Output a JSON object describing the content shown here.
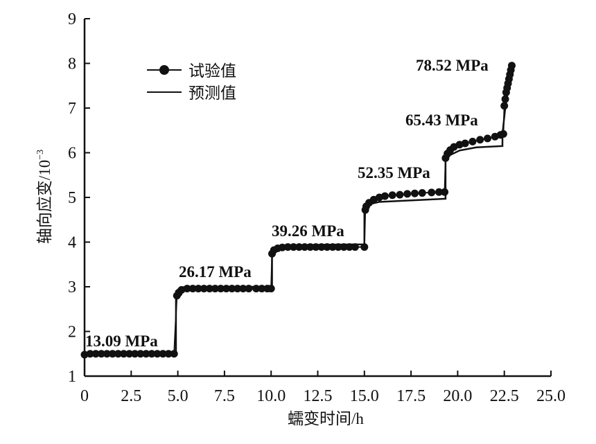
{
  "chart_data": {
    "type": "line",
    "title": "",
    "xlabel": "蠕变时间/h",
    "ylabel": "轴向应变/10",
    "ylabel_exp": "−3",
    "xlim": [
      0,
      25
    ],
    "ylim": [
      1,
      9
    ],
    "xticks": [
      "0",
      "2.5",
      "5.0",
      "7.5",
      "10.0",
      "12.5",
      "15.0",
      "17.5",
      "20.0",
      "22.5",
      "25.0"
    ],
    "yticks": [
      "1",
      "2",
      "3",
      "4",
      "5",
      "6",
      "7",
      "8",
      "9"
    ],
    "grid": false,
    "legend": {
      "placement": "top-left",
      "entries": [
        "试验值",
        "预测值"
      ]
    },
    "annotations": [
      "13.09 MPa",
      "26.17 MPa",
      "39.26 MPa",
      "52.35 MPa",
      "65.43 MPa",
      "78.52 MPa"
    ],
    "series": [
      {
        "name": "试验值",
        "marker": "circle",
        "points": [
          [
            0,
            1.48
          ],
          [
            0.3,
            1.5
          ],
          [
            0.6,
            1.5
          ],
          [
            0.9,
            1.5
          ],
          [
            1.2,
            1.5
          ],
          [
            1.5,
            1.5
          ],
          [
            1.8,
            1.5
          ],
          [
            2.1,
            1.5
          ],
          [
            2.4,
            1.5
          ],
          [
            2.7,
            1.5
          ],
          [
            3.0,
            1.5
          ],
          [
            3.3,
            1.5
          ],
          [
            3.6,
            1.5
          ],
          [
            3.9,
            1.5
          ],
          [
            4.2,
            1.5
          ],
          [
            4.5,
            1.5
          ],
          [
            4.8,
            1.5
          ],
          [
            4.95,
            2.8
          ],
          [
            5.05,
            2.86
          ],
          [
            5.2,
            2.93
          ],
          [
            5.5,
            2.96
          ],
          [
            5.8,
            2.96
          ],
          [
            6.1,
            2.96
          ],
          [
            6.4,
            2.96
          ],
          [
            6.7,
            2.96
          ],
          [
            7.0,
            2.96
          ],
          [
            7.3,
            2.96
          ],
          [
            7.6,
            2.96
          ],
          [
            7.9,
            2.96
          ],
          [
            8.2,
            2.96
          ],
          [
            8.5,
            2.96
          ],
          [
            8.8,
            2.96
          ],
          [
            9.2,
            2.96
          ],
          [
            9.5,
            2.96
          ],
          [
            9.8,
            2.96
          ],
          [
            10.0,
            2.96
          ],
          [
            10.05,
            3.74
          ],
          [
            10.15,
            3.82
          ],
          [
            10.35,
            3.86
          ],
          [
            10.6,
            3.88
          ],
          [
            10.9,
            3.89
          ],
          [
            11.2,
            3.89
          ],
          [
            11.5,
            3.89
          ],
          [
            11.8,
            3.89
          ],
          [
            12.1,
            3.89
          ],
          [
            12.4,
            3.89
          ],
          [
            12.7,
            3.89
          ],
          [
            13.0,
            3.89
          ],
          [
            13.3,
            3.89
          ],
          [
            13.6,
            3.89
          ],
          [
            13.9,
            3.89
          ],
          [
            14.2,
            3.89
          ],
          [
            14.5,
            3.89
          ],
          [
            15.0,
            3.89
          ],
          [
            15.05,
            4.72
          ],
          [
            15.1,
            4.8
          ],
          [
            15.25,
            4.88
          ],
          [
            15.5,
            4.95
          ],
          [
            15.8,
            5.0
          ],
          [
            16.1,
            5.03
          ],
          [
            16.5,
            5.05
          ],
          [
            16.9,
            5.06
          ],
          [
            17.3,
            5.08
          ],
          [
            17.7,
            5.09
          ],
          [
            18.1,
            5.1
          ],
          [
            18.6,
            5.11
          ],
          [
            19.0,
            5.12
          ],
          [
            19.3,
            5.12
          ],
          [
            19.35,
            5.88
          ],
          [
            19.45,
            5.98
          ],
          [
            19.6,
            6.06
          ],
          [
            19.8,
            6.13
          ],
          [
            20.1,
            6.18
          ],
          [
            20.4,
            6.21
          ],
          [
            20.8,
            6.25
          ],
          [
            21.2,
            6.29
          ],
          [
            21.6,
            6.32
          ],
          [
            22.0,
            6.36
          ],
          [
            22.3,
            6.4
          ],
          [
            22.45,
            6.42
          ],
          [
            22.5,
            7.05
          ],
          [
            22.55,
            7.2
          ],
          [
            22.6,
            7.35
          ],
          [
            22.65,
            7.45
          ],
          [
            22.7,
            7.55
          ],
          [
            22.75,
            7.65
          ],
          [
            22.8,
            7.75
          ],
          [
            22.85,
            7.85
          ],
          [
            22.9,
            7.95
          ]
        ]
      },
      {
        "name": "预测值",
        "marker": "none",
        "points": [
          [
            0,
            1.5
          ],
          [
            4.9,
            1.5
          ],
          [
            4.9,
            2.9
          ],
          [
            5.1,
            2.97
          ],
          [
            5.4,
            3.0
          ],
          [
            10.05,
            3.0
          ],
          [
            10.05,
            3.8
          ],
          [
            10.3,
            3.9
          ],
          [
            10.7,
            3.93
          ],
          [
            15.0,
            3.95
          ],
          [
            15.0,
            4.72
          ],
          [
            15.3,
            4.85
          ],
          [
            15.8,
            4.9
          ],
          [
            19.35,
            4.97
          ],
          [
            19.35,
            5.82
          ],
          [
            19.6,
            5.95
          ],
          [
            20.1,
            6.05
          ],
          [
            21.0,
            6.12
          ],
          [
            22.4,
            6.15
          ],
          [
            22.4,
            6.42
          ],
          [
            22.55,
            7.0
          ],
          [
            22.9,
            7.9
          ]
        ]
      }
    ]
  }
}
